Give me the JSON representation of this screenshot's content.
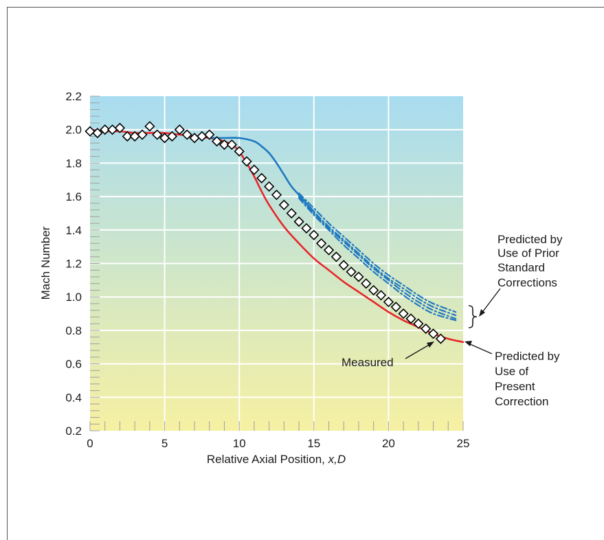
{
  "chart_data": {
    "type": "line",
    "title": "",
    "xlabel_prefix": "Relative Axial Position, ",
    "xlabel_var": "x,D",
    "ylabel": "Mach Number",
    "xlim": [
      0,
      25
    ],
    "ylim": [
      0.2,
      2.2
    ],
    "xticks": [
      0,
      5,
      10,
      15,
      20,
      25
    ],
    "yticks": [
      0.2,
      0.4,
      0.6,
      0.8,
      1.0,
      1.2,
      1.4,
      1.6,
      1.8,
      2.0,
      2.2
    ],
    "ytick_labels": [
      "0.2",
      "0.4",
      "0.6",
      "0.8",
      "1.0",
      "1.2",
      "1.4",
      "1.6",
      "1.8",
      "2.0",
      "2.2"
    ],
    "grid": true,
    "background_gradient": [
      "#a8dcf0",
      "#f6f0a2"
    ],
    "series": [
      {
        "style": "markers",
        "marker": "diamond",
        "color": "#000000",
        "x": [
          0,
          0.5,
          1,
          1.5,
          2,
          2.5,
          3,
          3.5,
          4,
          4.5,
          5,
          5.5,
          6,
          6.5,
          7,
          7.5,
          8,
          8.5,
          9,
          9.5,
          10,
          10.5,
          11,
          11.5,
          12,
          12.5,
          13,
          13.5,
          14,
          14.5,
          15,
          15.5,
          16,
          16.5,
          17,
          17.5,
          18,
          18.5,
          19,
          19.5,
          20,
          20.5,
          21,
          21.5,
          22,
          22.5,
          23,
          23.5
        ],
        "y": [
          1.99,
          1.98,
          2.0,
          2.0,
          2.01,
          1.96,
          1.96,
          1.97,
          2.02,
          1.97,
          1.95,
          1.96,
          2.0,
          1.97,
          1.95,
          1.96,
          1.97,
          1.93,
          1.91,
          1.91,
          1.87,
          1.81,
          1.76,
          1.71,
          1.66,
          1.61,
          1.55,
          1.5,
          1.45,
          1.41,
          1.37,
          1.32,
          1.28,
          1.24,
          1.19,
          1.15,
          1.12,
          1.08,
          1.04,
          1.01,
          0.97,
          0.94,
          0.9,
          0.87,
          0.84,
          0.81,
          0.78,
          0.75
        ]
      },
      {
        "style": "solid",
        "color": "#e8262a",
        "x": [
          0,
          1,
          2,
          3,
          4,
          5,
          6,
          7,
          8,
          9,
          9.8,
          10.5,
          11,
          11.5,
          12,
          13,
          14,
          15,
          16,
          17,
          18,
          19,
          20,
          21,
          22,
          23,
          24,
          25
        ],
        "y": [
          2.0,
          1.99,
          1.99,
          1.98,
          1.98,
          1.98,
          1.97,
          1.96,
          1.95,
          1.93,
          1.89,
          1.8,
          1.72,
          1.63,
          1.55,
          1.42,
          1.32,
          1.23,
          1.16,
          1.09,
          1.03,
          0.97,
          0.91,
          0.86,
          0.82,
          0.78,
          0.75,
          0.73
        ]
      },
      {
        "style": "solid",
        "color": "#1e78c0",
        "x": [
          8,
          9,
          10,
          11,
          11.5,
          12,
          12.5,
          13,
          13.5,
          14,
          15
        ],
        "y": [
          1.95,
          1.95,
          1.95,
          1.93,
          1.9,
          1.86,
          1.8,
          1.73,
          1.66,
          1.61,
          1.51
        ]
      },
      {
        "style": "dash-dot",
        "color": "#1e78c0",
        "x": [
          14,
          15,
          16,
          17,
          18,
          19,
          20,
          21,
          22,
          23,
          24.5
        ],
        "y": [
          1.62,
          1.53,
          1.44,
          1.36,
          1.28,
          1.2,
          1.13,
          1.07,
          1.01,
          0.96,
          0.91
        ]
      },
      {
        "style": "dash-dot",
        "color": "#1e78c0",
        "x": [
          14,
          15,
          16,
          17,
          18,
          19,
          20,
          21,
          22,
          23,
          24.5
        ],
        "y": [
          1.61,
          1.51,
          1.42,
          1.34,
          1.26,
          1.18,
          1.11,
          1.05,
          0.99,
          0.94,
          0.89
        ]
      },
      {
        "style": "dash-dot",
        "color": "#1e78c0",
        "x": [
          14,
          15,
          16,
          17,
          18,
          19,
          20,
          21,
          22,
          23,
          24.5
        ],
        "y": [
          1.6,
          1.5,
          1.41,
          1.33,
          1.25,
          1.17,
          1.1,
          1.03,
          0.97,
          0.92,
          0.87
        ]
      },
      {
        "style": "dash-dot",
        "color": "#1e78c0",
        "x": [
          14,
          15,
          16,
          17,
          18,
          19,
          20,
          21,
          22,
          23,
          24.5
        ],
        "y": [
          1.59,
          1.49,
          1.4,
          1.31,
          1.23,
          1.15,
          1.08,
          1.01,
          0.95,
          0.9,
          0.86
        ]
      }
    ],
    "annotations": {
      "prior": [
        "Predicted by",
        "Use of Prior",
        "Standard",
        "Corrections"
      ],
      "present": [
        "Predicted by",
        "Use of",
        "Present",
        "Correction"
      ],
      "measured": "Measured"
    }
  }
}
